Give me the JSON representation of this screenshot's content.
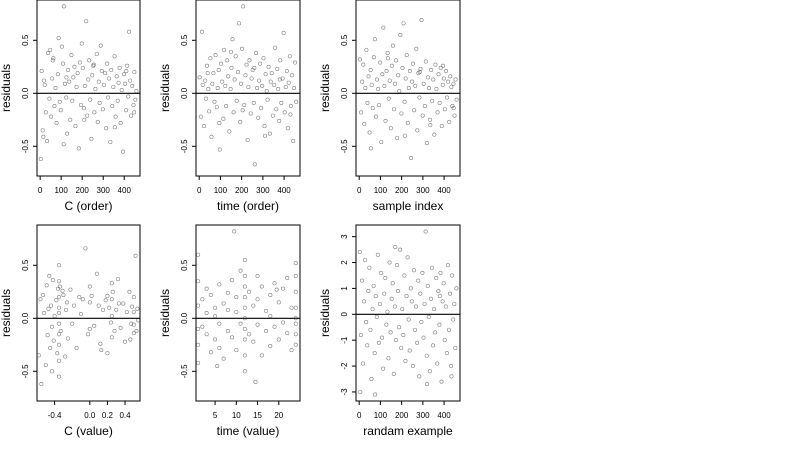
{
  "chart_data": [
    {
      "type": "scatter",
      "title": "",
      "xlabel": "C (order)",
      "ylabel": "residuals",
      "xlim": [
        -15,
        475
      ],
      "ylim": [
        -0.78,
        0.88
      ],
      "xticks": [
        0,
        100,
        200,
        300,
        400
      ],
      "xtick_labels": [
        "0",
        "100",
        "200",
        "300",
        "400"
      ],
      "yticks": [
        -0.5,
        0,
        0.5
      ],
      "ytick_labels": [
        "-0.5",
        "0.0",
        "0.5"
      ],
      "reference_line_y": 0,
      "grid": false,
      "x": [
        3,
        7,
        12,
        18,
        22,
        27,
        33,
        38,
        44,
        48,
        52,
        57,
        63,
        68,
        73,
        78,
        84,
        88,
        93,
        98,
        104,
        109,
        113,
        118,
        124,
        128,
        133,
        138,
        143,
        149,
        153,
        158,
        163,
        168,
        173,
        178,
        184,
        189,
        194,
        198,
        203,
        208,
        213,
        219,
        224,
        229,
        233,
        238,
        244,
        248,
        253,
        258,
        263,
        269,
        274,
        279,
        283,
        288,
        293,
        298,
        304,
        309,
        314,
        319,
        323,
        328,
        334,
        338,
        343,
        348,
        354,
        359,
        364,
        369,
        373,
        378,
        383,
        388,
        394,
        399,
        404,
        409,
        414,
        419,
        423,
        428,
        433,
        438,
        444,
        448,
        453,
        458,
        15,
        60,
        112,
        125,
        210,
        255,
        355,
        410,
        447
      ],
      "y": [
        -0.62,
        0.21,
        -0.35,
        0.12,
        0.08,
        -0.18,
        -0.45,
        0.38,
        -0.05,
        0.41,
        -0.22,
        0.14,
        0.33,
        -0.12,
        0.05,
        -0.28,
        0.18,
        0.52,
        -0.08,
        -0.16,
        0.44,
        0.28,
        0.82,
        0.09,
        -0.04,
        -0.38,
        0.22,
        0.11,
        -0.25,
        0.36,
        -0.07,
        0.15,
        0.25,
        -0.31,
        0.06,
        0.19,
        -0.52,
        0.29,
        -0.11,
        0.47,
        0.24,
        -0.14,
        0.07,
        0.68,
        -0.21,
        0.13,
        0.31,
        -0.06,
        -0.43,
        0.17,
        0.26,
        -0.18,
        0.04,
        0.37,
        -0.27,
        0.11,
        -0.09,
        0.45,
        0.21,
        -0.15,
        0.08,
        0.19,
        -0.33,
        0.28,
        -0.04,
        0.14,
        -0.46,
        0.22,
        -0.12,
        0.06,
        0.35,
        -0.22,
        0.16,
        -0.07,
        0.1,
        0.24,
        -0.28,
        0.03,
        -0.55,
        0.18,
        0.09,
        -0.16,
        0.26,
        -0.03,
        0.58,
        0.12,
        -0.21,
        0.07,
        -0.11,
        0.2,
        -0.06,
        0.02,
        -0.41,
        0.31,
        -0.48,
        0.15,
        -0.25,
        0.27,
        -0.32,
        0.21,
        -0.18
      ]
    },
    {
      "type": "scatter",
      "title": "",
      "xlabel": "time (order)",
      "ylabel": "residuals",
      "xlim": [
        -15,
        475
      ],
      "ylim": [
        -0.78,
        0.88
      ],
      "xticks": [
        0,
        100,
        200,
        300,
        400
      ],
      "xtick_labels": [
        "0",
        "100",
        "200",
        "300",
        "400"
      ],
      "yticks": [
        -0.5,
        0,
        0.5
      ],
      "ytick_labels": [
        "-0.5",
        "0.0",
        "0.5"
      ],
      "reference_line_y": 0,
      "grid": false,
      "x": [
        2,
        8,
        13,
        17,
        23,
        28,
        32,
        37,
        43,
        47,
        53,
        58,
        62,
        67,
        72,
        77,
        83,
        87,
        92,
        97,
        103,
        108,
        114,
        117,
        123,
        127,
        132,
        137,
        142,
        148,
        152,
        157,
        162,
        167,
        172,
        177,
        183,
        188,
        193,
        197,
        202,
        207,
        212,
        218,
        223,
        228,
        232,
        237,
        243,
        247,
        252,
        257,
        262,
        268,
        273,
        278,
        282,
        287,
        292,
        297,
        303,
        308,
        313,
        318,
        322,
        327,
        333,
        337,
        342,
        347,
        353,
        358,
        363,
        368,
        372,
        377,
        382,
        387,
        393,
        398,
        403,
        408,
        413,
        418,
        422,
        427,
        432,
        437,
        443,
        447,
        452,
        457,
        40,
        95,
        150,
        205,
        260,
        310,
        380,
        430
      ],
      "y": [
        0.15,
        -0.22,
        0.58,
        0.08,
        -0.31,
        0.12,
        -0.05,
        0.26,
        0.04,
        -0.17,
        0.33,
        -0.41,
        0.09,
        0.19,
        -0.08,
        0.36,
        -0.13,
        0.05,
        0.22,
        -0.53,
        0.28,
        0.11,
        -0.24,
        0.41,
        0.07,
        -0.12,
        0.31,
        0.16,
        -0.36,
        0.04,
        0.24,
        0.51,
        -0.18,
        0.13,
        0.35,
        -0.07,
        0.2,
        0.66,
        -0.27,
        0.09,
        0.42,
        0.82,
        -0.11,
        0.17,
        0.27,
        -0.44,
        0.06,
        0.31,
        -0.19,
        0.14,
        0.22,
        -0.09,
        -0.67,
        0.38,
        0.05,
        -0.23,
        0.12,
        0.28,
        -0.14,
        0.07,
        0.33,
        -0.31,
        0.18,
        0.02,
        -0.06,
        0.25,
        -0.38,
        0.11,
        0.19,
        -0.21,
        0.08,
        0.43,
        -0.15,
        0.23,
        0.04,
        -0.26,
        0.31,
        -0.09,
        0.14,
        0.57,
        -0.18,
        0.06,
        0.21,
        -0.33,
        0.1,
        0.35,
        -0.12,
        0.17,
        -0.45,
        0.05,
        0.29,
        -0.08,
        0.19,
        -0.28,
        0.39,
        -0.16,
        0.24,
        -0.4,
        0.13,
        -0.2
      ]
    },
    {
      "type": "scatter",
      "title": "",
      "xlabel": "sample index",
      "ylabel": "residuals",
      "xlim": [
        -15,
        475
      ],
      "ylim": [
        -0.78,
        0.88
      ],
      "xticks": [
        0,
        100,
        200,
        300,
        400
      ],
      "xtick_labels": [
        "0",
        "100",
        "200",
        "300",
        "400"
      ],
      "yticks": [
        -0.5,
        0,
        0.5
      ],
      "ytick_labels": [
        "-0.5",
        "0.0",
        "0.5"
      ],
      "reference_line_y": 0,
      "grid": false,
      "x": [
        4,
        9,
        14,
        19,
        24,
        29,
        34,
        39,
        44,
        49,
        54,
        59,
        64,
        69,
        74,
        79,
        84,
        89,
        94,
        99,
        104,
        109,
        114,
        119,
        124,
        129,
        134,
        139,
        144,
        149,
        154,
        159,
        164,
        169,
        174,
        179,
        184,
        189,
        194,
        199,
        204,
        209,
        214,
        219,
        224,
        229,
        234,
        239,
        244,
        249,
        254,
        259,
        264,
        269,
        274,
        279,
        284,
        289,
        294,
        299,
        304,
        309,
        314,
        319,
        324,
        329,
        334,
        339,
        344,
        349,
        354,
        359,
        364,
        369,
        374,
        379,
        384,
        389,
        394,
        399,
        404,
        409,
        414,
        419,
        424,
        429,
        434,
        439,
        444,
        449,
        454,
        459,
        55,
        135,
        215,
        285,
        335,
        395,
        445
      ],
      "y": [
        0.32,
        -0.18,
        0.11,
        0.27,
        -0.29,
        0.05,
        0.41,
        -0.09,
        0.16,
        -0.37,
        0.22,
        0.08,
        -0.14,
        0.34,
        0.51,
        -0.22,
        0.13,
        0.04,
        -0.11,
        0.29,
        -0.46,
        0.18,
        0.62,
        0.07,
        -0.26,
        0.21,
        0.38,
        -0.05,
        0.12,
        -0.33,
        0.26,
        0.45,
        -0.15,
        0.09,
        0.31,
        -0.42,
        0.17,
        0.02,
        0.55,
        -0.19,
        0.24,
        0.66,
        -0.08,
        0.14,
        0.36,
        -0.28,
        0.05,
        0.21,
        -0.61,
        0.11,
        0.28,
        -0.16,
        0.07,
        0.42,
        -0.35,
        0.19,
        -0.04,
        0.23,
        0.69,
        -0.21,
        0.09,
        -0.12,
        0.3,
        -0.47,
        0.15,
        0.05,
        -0.25,
        0.22,
        -0.07,
        0.13,
        -0.39,
        0.27,
        0.04,
        -0.18,
        0.18,
        -0.09,
        0.24,
        -0.31,
        0.08,
        0.14,
        -0.15,
        0.21,
        -0.04,
        0.11,
        -0.27,
        0.16,
        0.06,
        -0.12,
        0.09,
        -0.21,
        0.13,
        -0.06,
        -0.52,
        0.33,
        -0.4,
        0.2,
        -0.3,
        0.26,
        -0.14
      ]
    },
    {
      "type": "scatter",
      "title": "",
      "xlabel": "C (value)",
      "ylabel": "residuals",
      "xlim": [
        -0.6,
        0.57
      ],
      "ylim": [
        -0.78,
        0.88
      ],
      "xticks": [
        -0.4,
        0.0,
        0.2,
        0.4
      ],
      "xtick_labels": [
        "-0.4",
        "0.0",
        "0.2",
        "0.4"
      ],
      "yticks": [
        -0.5,
        0,
        0.5
      ],
      "ytick_labels": [
        "-0.5",
        "0.0",
        "0.5"
      ],
      "reference_line_y": 0,
      "grid": false,
      "x": [
        -0.58,
        -0.56,
        -0.55,
        -0.53,
        -0.52,
        -0.5,
        -0.49,
        -0.48,
        -0.47,
        -0.46,
        -0.45,
        -0.44,
        -0.43,
        -0.42,
        -0.41,
        -0.4,
        -0.38,
        -0.37,
        -0.36,
        -0.35,
        -0.35,
        -0.35,
        -0.35,
        -0.35,
        -0.35,
        -0.35,
        -0.35,
        -0.35,
        -0.35,
        -0.34,
        -0.33,
        -0.3,
        -0.28,
        -0.27,
        -0.26,
        -0.25,
        -0.22,
        -0.2,
        -0.18,
        -0.15,
        -0.12,
        -0.1,
        -0.05,
        -0.02,
        0,
        0,
        0,
        0.02,
        0.05,
        0.08,
        0.1,
        0.12,
        0.15,
        0.18,
        0.2,
        0.2,
        0.22,
        0.24,
        0.25,
        0.25,
        0.25,
        0.25,
        0.26,
        0.28,
        0.3,
        0.32,
        0.35,
        0.38,
        0.4,
        0.42,
        0.45,
        0.47,
        0.48,
        0.5,
        0.5,
        0.5,
        0.5,
        0.52,
        0.53,
        0.54,
        0.55,
        -0.43,
        -0.31,
        -0.08,
        0.13,
        0.33,
        0.46
      ],
      "y": [
        -0.35,
        0.18,
        -0.62,
        0.22,
        0.05,
        -0.44,
        0.31,
        -0.16,
        0.09,
        0.4,
        -0.28,
        0.12,
        -0.08,
        0.36,
        -0.21,
        0.02,
        0.17,
        -0.33,
        0.28,
        0.5,
        0.35,
        0.2,
        0.1,
        0.05,
        -0.05,
        -0.15,
        -0.25,
        -0.4,
        -0.55,
        0.3,
        -0.12,
        0.22,
        -0.36,
        0.08,
        0.15,
        -0.19,
        0.27,
        -0.05,
        0.12,
        -0.28,
        0.2,
        0.04,
        0.66,
        -0.15,
        0.3,
        0.15,
        -0.1,
        0.21,
        -0.07,
        0.42,
        0.12,
        -0.24,
        0.08,
        0.17,
        -0.33,
        0.21,
        0.1,
        -0.04,
        0.33,
        0.18,
        0.02,
        -0.18,
        0.25,
        -0.12,
        0.08,
        0.37,
        -0.09,
        0.14,
        -0.22,
        0.06,
        0.25,
        -0.05,
        0.11,
        0.2,
        0.06,
        -0.06,
        -0.14,
        0.59,
        -0.12,
        0.09,
        -0.02,
        -0.5,
        0.26,
        0.18,
        -0.3,
        0.14,
        -0.2
      ]
    },
    {
      "type": "scatter",
      "title": "",
      "xlabel": "time (value)",
      "ylabel": "residuals",
      "xlim": [
        0.5,
        25
      ],
      "ylim": [
        -0.78,
        0.88
      ],
      "xticks": [
        5,
        10,
        15,
        20
      ],
      "xtick_labels": [
        "5",
        "10",
        "15",
        "20"
      ],
      "yticks": [
        -0.5,
        0,
        0.5
      ],
      "ytick_labels": [
        "-0.5",
        "0.0",
        "0.5"
      ],
      "reference_line_y": 0,
      "grid": false,
      "x": [
        1,
        1,
        1,
        1,
        1,
        1,
        2,
        2,
        3,
        3,
        3,
        4,
        4,
        5,
        5,
        5,
        6,
        6,
        6,
        7,
        7,
        8,
        8,
        8,
        9,
        9,
        10,
        10,
        10,
        11,
        11,
        12,
        12,
        12,
        12,
        12,
        12,
        12,
        12,
        12,
        12,
        13,
        13,
        14,
        14,
        15,
        15,
        15,
        16,
        16,
        17,
        17,
        18,
        18,
        18,
        19,
        19,
        20,
        20,
        21,
        21,
        22,
        22,
        23,
        23,
        24,
        24,
        24,
        24,
        24,
        24,
        24,
        24,
        5.5,
        9.5,
        14.5,
        19.5
      ],
      "y": [
        0.35,
        0.12,
        -0.1,
        -0.25,
        0.6,
        -0.42,
        0.18,
        -0.08,
        0.28,
        -0.15,
        0.05,
        -0.32,
        0.22,
        0.1,
        -0.2,
        0.02,
        0.32,
        -0.05,
        -0.28,
        0.14,
        -0.38,
        0.24,
        -0.12,
        0.08,
        0.36,
        -0.18,
        0.06,
        0.2,
        -0.3,
        0.45,
        -0.05,
        0.55,
        0.4,
        0.3,
        0.2,
        0.1,
        0,
        -0.1,
        -0.2,
        -0.35,
        -0.5,
        0.25,
        -0.15,
        0.12,
        -0.22,
        0.4,
        -0.06,
        0.18,
        0.3,
        -0.35,
        0.07,
        -0.12,
        0.22,
        0.02,
        -0.26,
        0.33,
        -0.08,
        0.15,
        -0.2,
        0.28,
        -0.04,
        0.38,
        -0.14,
        0.1,
        -0.3,
        0.4,
        0.25,
        0.1,
        0,
        -0.05,
        -0.15,
        -0.25,
        0.52,
        -0.45,
        0.82,
        -0.6,
        0.27
      ]
    },
    {
      "type": "scatter",
      "title": "",
      "xlabel": "randam example",
      "ylabel": "residuals",
      "xlim": [
        -15,
        475
      ],
      "ylim": [
        -3.35,
        3.45
      ],
      "xticks": [
        0,
        100,
        200,
        300,
        400
      ],
      "xtick_labels": [
        "0",
        "100",
        "200",
        "300",
        "400"
      ],
      "yticks": [
        -3,
        -2,
        -1,
        0,
        1,
        2,
        3
      ],
      "ytick_labels": [
        "-3",
        "-2",
        "-1",
        "0",
        "1",
        "2",
        "3"
      ],
      "reference_line_y": 0,
      "grid": false,
      "x": [
        3,
        8,
        13,
        18,
        23,
        28,
        33,
        38,
        43,
        48,
        53,
        58,
        63,
        68,
        73,
        78,
        83,
        88,
        93,
        98,
        103,
        108,
        113,
        118,
        123,
        128,
        133,
        138,
        143,
        148,
        153,
        158,
        163,
        168,
        173,
        178,
        183,
        188,
        193,
        198,
        203,
        208,
        213,
        218,
        223,
        228,
        233,
        238,
        243,
        248,
        253,
        258,
        263,
        268,
        273,
        278,
        283,
        288,
        293,
        298,
        303,
        308,
        313,
        318,
        323,
        328,
        333,
        338,
        343,
        348,
        353,
        358,
        363,
        368,
        373,
        378,
        383,
        388,
        393,
        398,
        403,
        408,
        413,
        418,
        423,
        428,
        433,
        438,
        443,
        448,
        453,
        458,
        5,
        75,
        170,
        320,
        380,
        435
      ],
      "y": [
        2.4,
        -0.8,
        1.3,
        -1.9,
        0.5,
        2.1,
        -0.3,
        -1.2,
        0.9,
        1.8,
        -0.6,
        -2.5,
        0.2,
        1.1,
        -1.5,
        0.7,
        -0.1,
        2.3,
        -1.1,
        0.4,
        1.6,
        -0.9,
        -2.1,
        0.8,
        1.4,
        -0.4,
        0.1,
        -1.7,
        2,
        -0.7,
        0.6,
        1.2,
        -2.3,
        0.3,
        -1,
        1.9,
        0.9,
        -0.5,
        2.5,
        -1.3,
        0.2,
        -0.8,
        1.5,
        -1.8,
        0.7,
        2.2,
        -0.2,
        -1.4,
        1,
        0.5,
        -2,
        1.7,
        -0.6,
        0.3,
        -1.1,
        1.3,
        -2.4,
        0.8,
        -0.3,
        1.6,
        -0.9,
        0.4,
        3.2,
        -1.6,
        1.1,
        -0.1,
        -2.2,
        0.6,
        1.8,
        -1.2,
        0.2,
        -0.7,
        1.4,
        -1.9,
        0.9,
        -0.4,
        1.6,
        -2.6,
        0.5,
        1.2,
        -1,
        0.3,
        -1.5,
        1.9,
        -0.6,
        0.8,
        -2,
        1.5,
        -0.2,
        0.4,
        -1.3,
        1,
        -3,
        -3.1,
        2.6,
        -2.7,
        0.7,
        -2.4
      ]
    }
  ]
}
